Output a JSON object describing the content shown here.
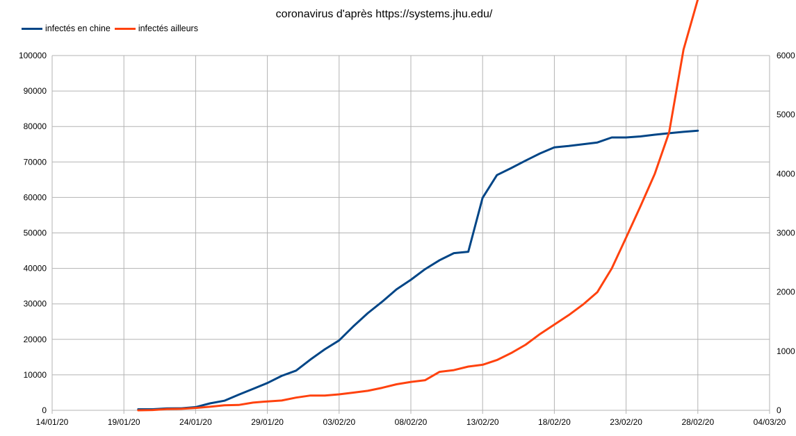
{
  "chart_data": {
    "type": "line",
    "title": "coronavirus d'après https://systems.jhu.edu/",
    "legend_position": "top-left",
    "grid": true,
    "x_axis": {
      "type": "date",
      "min": "2020-01-14",
      "max": "2020-03-04",
      "tick_labels": [
        "14/01/20",
        "19/01/20",
        "24/01/20",
        "29/01/20",
        "03/02/20",
        "08/02/20",
        "13/02/20",
        "18/02/20",
        "23/02/20",
        "28/02/20",
        "04/03/20"
      ],
      "tick_dates": [
        "2020-01-14",
        "2020-01-19",
        "2020-01-24",
        "2020-01-29",
        "2020-02-03",
        "2020-02-08",
        "2020-02-13",
        "2020-02-18",
        "2020-02-23",
        "2020-02-28",
        "2020-03-04"
      ]
    },
    "y_left": {
      "min": 0,
      "max": 100000,
      "tick_labels": [
        "0",
        "10000",
        "20000",
        "30000",
        "40000",
        "50000",
        "60000",
        "70000",
        "80000",
        "90000",
        "100000"
      ]
    },
    "y_right": {
      "min": 0,
      "max": 6000,
      "tick_labels": [
        "0",
        "1000",
        "2000",
        "3000",
        "4000",
        "5000",
        "6000"
      ]
    },
    "series": [
      {
        "name": "infectés en chine",
        "color": "#004586",
        "axis": "left",
        "points": [
          [
            "2020-01-20",
            290
          ],
          [
            "2020-01-21",
            300
          ],
          [
            "2020-01-22",
            550
          ],
          [
            "2020-01-23",
            570
          ],
          [
            "2020-01-24",
            900
          ],
          [
            "2020-01-25",
            1950
          ],
          [
            "2020-01-26",
            2700
          ],
          [
            "2020-01-27",
            4400
          ],
          [
            "2020-01-28",
            6050
          ],
          [
            "2020-01-29",
            7700
          ],
          [
            "2020-01-30",
            9700
          ],
          [
            "2020-01-31",
            11200
          ],
          [
            "2020-02-01",
            14300
          ],
          [
            "2020-02-02",
            17200
          ],
          [
            "2020-02-03",
            19700
          ],
          [
            "2020-02-04",
            23700
          ],
          [
            "2020-02-05",
            27400
          ],
          [
            "2020-02-06",
            30600
          ],
          [
            "2020-02-07",
            34100
          ],
          [
            "2020-02-08",
            36800
          ],
          [
            "2020-02-09",
            39800
          ],
          [
            "2020-02-10",
            42300
          ],
          [
            "2020-02-11",
            44300
          ],
          [
            "2020-02-12",
            44700
          ],
          [
            "2020-02-13",
            59900
          ],
          [
            "2020-02-14",
            66300
          ],
          [
            "2020-02-15",
            68300
          ],
          [
            "2020-02-16",
            70400
          ],
          [
            "2020-02-17",
            72400
          ],
          [
            "2020-02-18",
            74100
          ],
          [
            "2020-02-19",
            74500
          ],
          [
            "2020-02-20",
            75000
          ],
          [
            "2020-02-21",
            75500
          ],
          [
            "2020-02-22",
            76900
          ],
          [
            "2020-02-23",
            76900
          ],
          [
            "2020-02-24",
            77200
          ],
          [
            "2020-02-25",
            77700
          ],
          [
            "2020-02-26",
            78100
          ],
          [
            "2020-02-27",
            78500
          ],
          [
            "2020-02-28",
            78800
          ]
        ]
      },
      {
        "name": "infectés ailleurs",
        "color": "#ff420e",
        "axis": "right",
        "points": [
          [
            "2020-01-20",
            0
          ],
          [
            "2020-01-21",
            5
          ],
          [
            "2020-01-22",
            20
          ],
          [
            "2020-01-23",
            25
          ],
          [
            "2020-01-24",
            40
          ],
          [
            "2020-01-25",
            60
          ],
          [
            "2020-01-26",
            85
          ],
          [
            "2020-01-27",
            90
          ],
          [
            "2020-01-28",
            130
          ],
          [
            "2020-01-29",
            150
          ],
          [
            "2020-01-30",
            165
          ],
          [
            "2020-01-31",
            215
          ],
          [
            "2020-02-01",
            250
          ],
          [
            "2020-02-02",
            250
          ],
          [
            "2020-02-03",
            270
          ],
          [
            "2020-02-04",
            300
          ],
          [
            "2020-02-05",
            330
          ],
          [
            "2020-02-06",
            380
          ],
          [
            "2020-02-07",
            440
          ],
          [
            "2020-02-08",
            480
          ],
          [
            "2020-02-09",
            510
          ],
          [
            "2020-02-10",
            650
          ],
          [
            "2020-02-11",
            680
          ],
          [
            "2020-02-12",
            740
          ],
          [
            "2020-02-13",
            770
          ],
          [
            "2020-02-14",
            850
          ],
          [
            "2020-02-15",
            970
          ],
          [
            "2020-02-16",
            1110
          ],
          [
            "2020-02-17",
            1290
          ],
          [
            "2020-02-18",
            1450
          ],
          [
            "2020-02-19",
            1610
          ],
          [
            "2020-02-20",
            1790
          ],
          [
            "2020-02-21",
            2000
          ],
          [
            "2020-02-22",
            2400
          ],
          [
            "2020-02-23",
            2920
          ],
          [
            "2020-02-24",
            3450
          ],
          [
            "2020-02-25",
            4000
          ],
          [
            "2020-02-26",
            4700
          ],
          [
            "2020-02-27",
            6100
          ],
          [
            "2020-02-28",
            6950
          ]
        ]
      }
    ]
  }
}
